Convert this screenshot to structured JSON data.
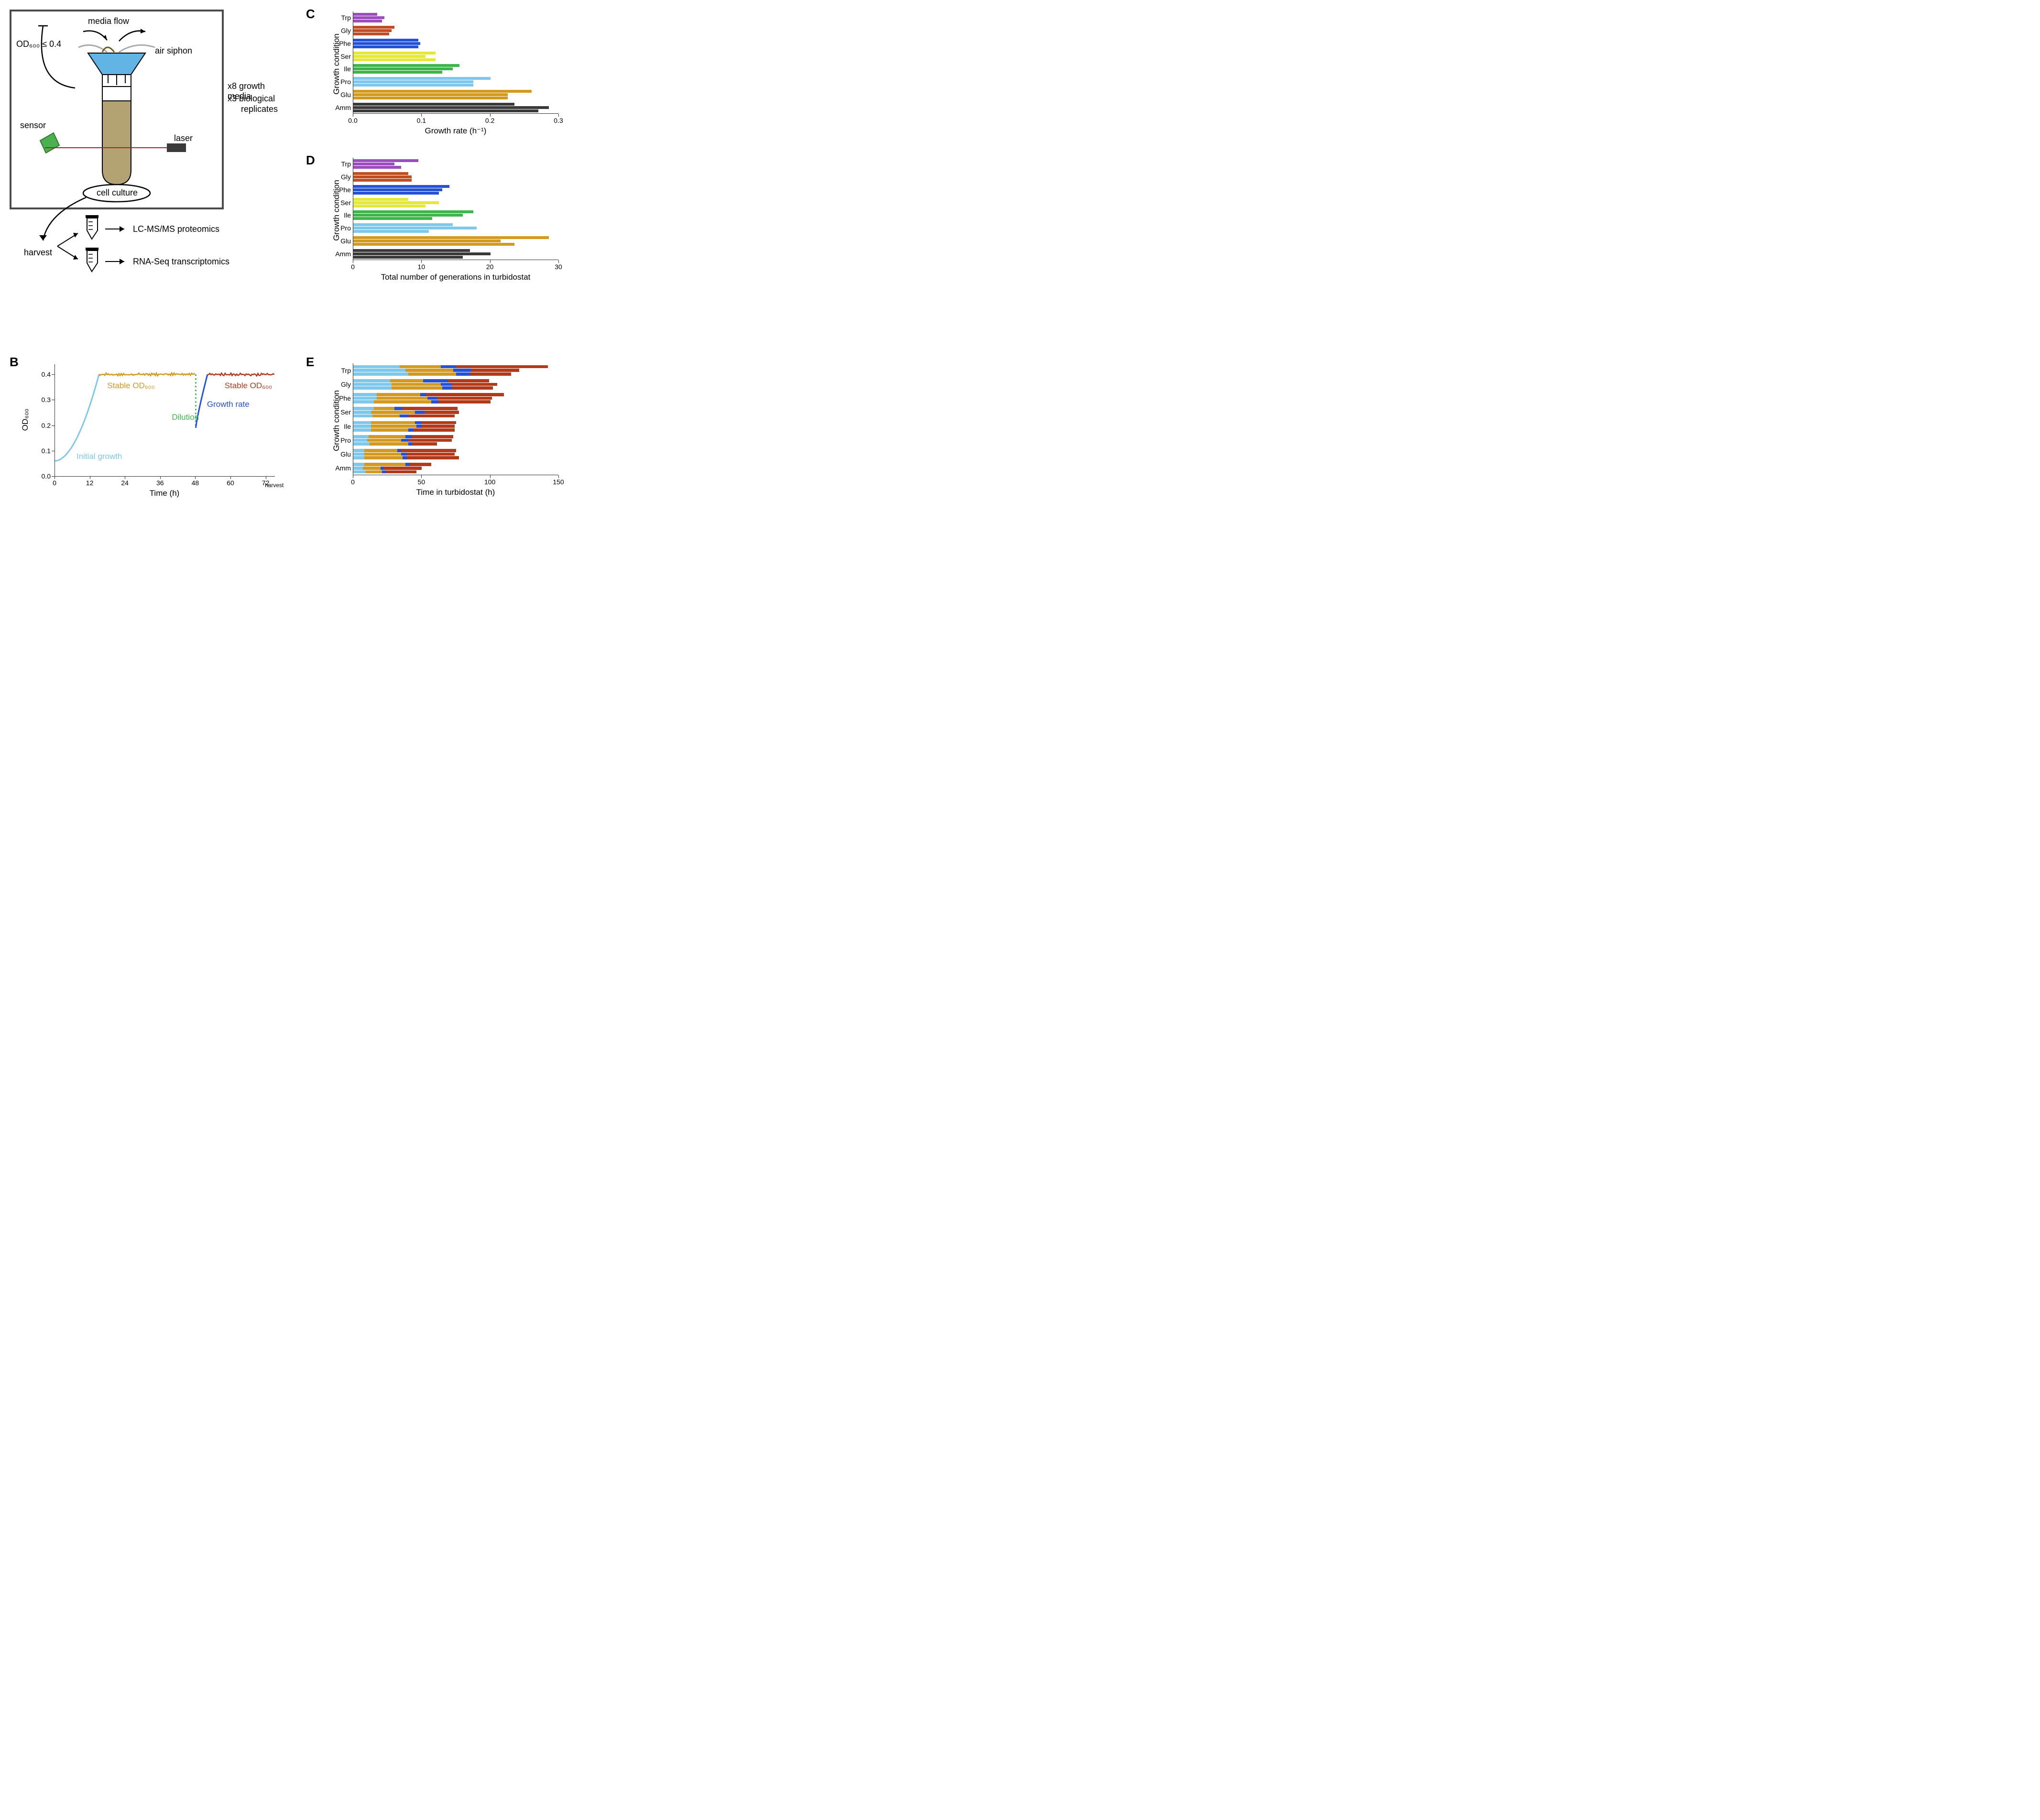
{
  "panel_labels": {
    "A": "A",
    "B": "B",
    "C": "C",
    "D": "D",
    "E": "E"
  },
  "panelA": {
    "media_flow_label": "media flow",
    "air_siphon_label": "air siphon",
    "od_threshold_label": "OD₆₀₀ ≤ 0.4",
    "sensor_label": "sensor",
    "laser_label": "laser",
    "cell_culture_label": "cell culture",
    "replicate_text_1": "x8 growth media",
    "replicate_text_2": "x3 biological",
    "replicate_text_3": "replicates",
    "harvest_label": "harvest",
    "proteomics_label": "LC-MS/MS proteomics",
    "transcriptomics_label": "RNA-Seq transcriptomics",
    "colors": {
      "funnel": "#62b4e4",
      "culture_liquid": "#b3a272",
      "sensor": "#4caf50",
      "laser_body": "#3a3a3a",
      "laser_beam": "#aa2222",
      "tube_outline": "#000000",
      "box_border": "#4a4a4a"
    }
  },
  "panelB": {
    "x_title": "Time (h)",
    "y_title": "OD₆₀₀",
    "harvest_label": "harvest",
    "x_ticks": [
      0,
      12,
      24,
      36,
      48,
      60,
      72
    ],
    "y_ticks": [
      0.0,
      0.1,
      0.2,
      0.3,
      0.4
    ],
    "xlim": [
      0,
      75
    ],
    "ylim": [
      0.0,
      0.44
    ],
    "trace_labels": {
      "initial": "Initial  growth",
      "stable1": "Stable  OD₆₀₀",
      "dilution": "Dilution",
      "growth_rate": "Growth  rate",
      "stable2": "Stable  OD₆₀₀"
    },
    "colors": {
      "initial": "#7ec7ed",
      "stable1": "#d39a1f",
      "dilution": "#3eb54a",
      "growth_rate": "#2352d8",
      "stable2": "#b23a1a"
    }
  },
  "conditions_order": [
    "Trp",
    "Gly",
    "Phe",
    "Ser",
    "Ile",
    "Pro",
    "Glu",
    "Amm"
  ],
  "condition_colors": {
    "Trp": "#9d4cc0",
    "Gly": "#c14d22",
    "Phe": "#2352d8",
    "Ser": "#e6e836",
    "Ile": "#3eb54a",
    "Pro": "#7ec7ed",
    "Glu": "#d39a1f",
    "Amm": "#3a3a3a"
  },
  "panelC": {
    "x_title": "Growth rate (h⁻¹)",
    "y_title": "Growth condition",
    "x_ticks": [
      0.0,
      0.1,
      0.2,
      0.3
    ],
    "xlim": [
      0.0,
      0.3
    ],
    "values": {
      "Trp": [
        0.035,
        0.045,
        0.042
      ],
      "Gly": [
        0.06,
        0.056,
        0.052
      ],
      "Phe": [
        0.095,
        0.098,
        0.095
      ],
      "Ser": [
        0.12,
        0.105,
        0.12
      ],
      "Ile": [
        0.155,
        0.145,
        0.13
      ],
      "Pro": [
        0.2,
        0.175,
        0.175
      ],
      "Glu": [
        0.26,
        0.225,
        0.225
      ],
      "Amm": [
        0.235,
        0.285,
        0.27
      ]
    }
  },
  "panelD": {
    "x_title": "Total number of generations in turbidostat",
    "y_title": "Growth condition",
    "x_ticks": [
      0,
      10,
      20,
      30
    ],
    "xlim": [
      0,
      30
    ],
    "values": {
      "Trp": [
        9.5,
        6.0,
        7.0
      ],
      "Gly": [
        8.0,
        8.5,
        8.5
      ],
      "Phe": [
        14.0,
        13.0,
        12.5
      ],
      "Ser": [
        8.0,
        12.5,
        10.5
      ],
      "Ile": [
        17.5,
        16.0,
        11.5
      ],
      "Pro": [
        14.5,
        18.0,
        11.0
      ],
      "Glu": [
        28.5,
        21.5,
        23.5
      ],
      "Amm": [
        17.0,
        20.0,
        16.0
      ]
    }
  },
  "panelE": {
    "x_title": "Time in turbidostat (h)",
    "y_title": "Growth condition",
    "x_ticks": [
      0,
      50,
      100,
      150
    ],
    "xlim": [
      0,
      150
    ],
    "segment_colors": {
      "initial": "#7ec7ed",
      "stable1": "#d39a1f",
      "growth": "#2352d8",
      "stable2": "#b23a1a"
    },
    "values": {
      "Trp": [
        [
          34,
          30,
          11,
          67
        ],
        [
          38,
          35,
          13,
          35
        ],
        [
          40,
          35,
          10,
          30
        ]
      ],
      "Gly": [
        [
          27,
          24,
          18,
          30
        ],
        [
          28,
          36,
          8,
          33
        ],
        [
          28,
          37,
          7,
          30
        ]
      ],
      "Phe": [
        [
          17,
          32,
          4,
          57
        ],
        [
          17,
          37,
          7,
          40
        ],
        [
          15,
          42,
          5,
          38
        ]
      ],
      "Ser": [
        [
          15,
          15,
          6,
          40
        ],
        [
          13,
          32,
          7,
          25
        ],
        [
          14,
          20,
          6,
          34
        ]
      ],
      "Ile": [
        [
          13,
          32,
          5,
          25
        ],
        [
          13,
          33,
          4,
          24
        ],
        [
          13,
          27,
          4,
          30
        ]
      ],
      "Pro": [
        [
          11,
          27,
          5,
          30
        ],
        [
          10,
          25,
          5,
          32
        ],
        [
          12,
          28,
          3,
          18
        ]
      ],
      "Glu": [
        [
          8,
          24,
          3,
          40
        ],
        [
          8,
          27,
          4,
          35
        ],
        [
          8,
          28,
          3,
          38
        ]
      ],
      "Amm": [
        [
          8,
          30,
          3,
          16
        ],
        [
          7,
          13,
          2,
          28
        ],
        [
          9,
          12,
          3,
          22
        ]
      ]
    }
  }
}
